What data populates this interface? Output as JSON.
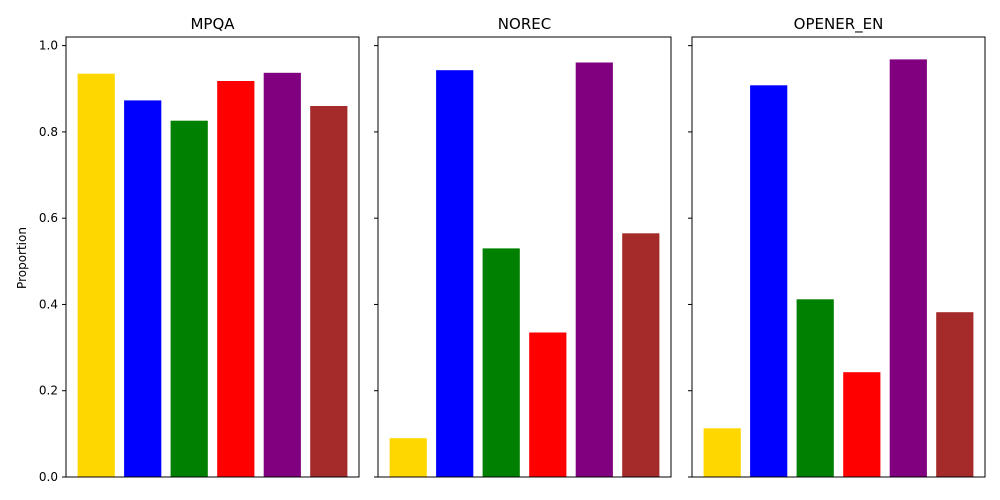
{
  "chart_data": {
    "type": "bar",
    "ylabel": "Proportion",
    "ylim": [
      0,
      1.02
    ],
    "yticks": [
      "0.0",
      "0.2",
      "0.4",
      "0.6",
      "0.8",
      "1.0"
    ],
    "ytick_values": [
      0.0,
      0.2,
      0.4,
      0.6,
      0.8,
      1.0
    ],
    "grid": false,
    "sharey": true,
    "bar_colors": [
      "#FFD700",
      "#0000FF",
      "#008000",
      "#FF0000",
      "#800080",
      "#A52A2A"
    ],
    "panels": [
      {
        "title": "MPQA",
        "values": [
          0.935,
          0.873,
          0.826,
          0.918,
          0.937,
          0.86
        ]
      },
      {
        "title": "NOREC",
        "values": [
          0.09,
          0.943,
          0.53,
          0.335,
          0.961,
          0.565
        ]
      },
      {
        "title": "OPENER_EN",
        "values": [
          0.113,
          0.908,
          0.412,
          0.243,
          0.968,
          0.382
        ]
      }
    ]
  }
}
